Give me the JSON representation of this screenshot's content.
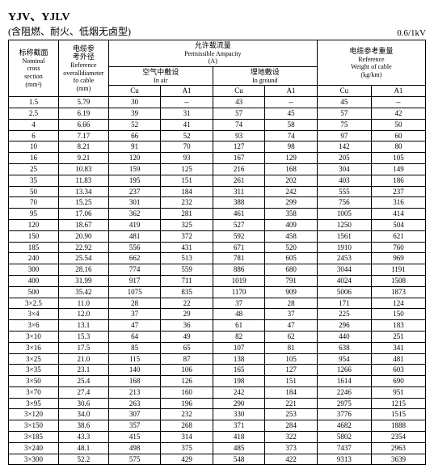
{
  "title_main": "YJV、YJLV",
  "title_sub": "(含阻燃、耐火、低烟无卤型)",
  "voltage": "0.6/1kV",
  "headers": {
    "nominal_ch": "标称截面",
    "nominal_en1": "Nominal",
    "nominal_en2": "cross",
    "nominal_en3": "section",
    "nominal_unit": "(mm²)",
    "diameter_ch": "电缆参\n考外径",
    "diameter_en1": "Reference",
    "diameter_en2": "overalldiameter",
    "diameter_en3": "fo cable",
    "diameter_unit": "(mm)",
    "ampacity_ch": "允许载流量",
    "ampacity_en": "Permissible Ampacity",
    "ampacity_unit": "(A)",
    "air_ch": "空气中敷设",
    "air_en": "In air",
    "ground_ch": "埋地敷设",
    "ground_en": "In ground",
    "weight_ch": "电缆参考重量",
    "weight_en1": "Reference",
    "weight_en2": "Weight of cable",
    "weight_unit": "(kg/km)",
    "cu": "Cu",
    "al": "A1"
  },
  "rows": [
    [
      "1.5",
      "5.79",
      "30",
      "--",
      "43",
      "--",
      "45",
      "--"
    ],
    [
      "2.5",
      "6.19",
      "39",
      "31",
      "57",
      "45",
      "57",
      "42"
    ],
    [
      "4",
      "6.66",
      "52",
      "41",
      "74",
      "58",
      "75",
      "50"
    ],
    [
      "6",
      "7.17",
      "66",
      "52",
      "93",
      "74",
      "97",
      "60"
    ],
    [
      "10",
      "8.21",
      "91",
      "70",
      "127",
      "98",
      "142",
      "80"
    ],
    [
      "16",
      "9.21",
      "120",
      "93",
      "167",
      "129",
      "205",
      "105"
    ],
    [
      "25",
      "10.83",
      "159",
      "125",
      "216",
      "168",
      "304",
      "149"
    ],
    [
      "35",
      "11.83",
      "195",
      "151",
      "261",
      "202",
      "403",
      "186"
    ],
    [
      "50",
      "13.34",
      "237",
      "184",
      "311",
      "242",
      "555",
      "237"
    ],
    [
      "70",
      "15.25",
      "301",
      "232",
      "388",
      "299",
      "756",
      "316"
    ],
    [
      "95",
      "17.06",
      "362",
      "281",
      "461",
      "358",
      "1005",
      "414"
    ],
    [
      "120",
      "18.67",
      "419",
      "325",
      "527",
      "409",
      "1250",
      "504"
    ],
    [
      "150",
      "20.90",
      "481",
      "372",
      "592",
      "458",
      "1561",
      "621"
    ],
    [
      "185",
      "22.92",
      "556",
      "431",
      "671",
      "520",
      "1910",
      "760"
    ],
    [
      "240",
      "25.54",
      "662",
      "513",
      "781",
      "605",
      "2453",
      "969"
    ],
    [
      "300",
      "28.16",
      "774",
      "559",
      "886",
      "680",
      "3044",
      "1191"
    ],
    [
      "400",
      "31.99",
      "917",
      "711",
      "1019",
      "791",
      "4024",
      "1508"
    ],
    [
      "500",
      "35.42",
      "1075",
      "835",
      "1170",
      "909",
      "5006",
      "1873"
    ],
    [
      "3×2.5",
      "11.0",
      "28",
      "22",
      "37",
      "28",
      "171",
      "124"
    ],
    [
      "3×4",
      "12.0",
      "37",
      "29",
      "48",
      "37",
      "225",
      "150"
    ],
    [
      "3×6",
      "13.1",
      "47",
      "36",
      "61",
      "47",
      "296",
      "183"
    ],
    [
      "3×10",
      "15.3",
      "64",
      "49",
      "82",
      "62",
      "440",
      "251"
    ],
    [
      "3×16",
      "17.5",
      "85",
      "65",
      "107",
      "81",
      "638",
      "341"
    ],
    [
      "3×25",
      "21.0",
      "115",
      "87",
      "138",
      "105",
      "954",
      "481"
    ],
    [
      "3×35",
      "23.1",
      "140",
      "106",
      "165",
      "127",
      "1266",
      "603"
    ],
    [
      "3×50",
      "25.4",
      "168",
      "126",
      "198",
      "151",
      "1614",
      "690"
    ],
    [
      "3×70",
      "27.4",
      "213",
      "160",
      "242",
      "184",
      "2246",
      "951"
    ],
    [
      "3×95",
      "30.6",
      "263",
      "196",
      "290",
      "221",
      "2975",
      "1215"
    ],
    [
      "3×120",
      "34.0",
      "307",
      "232",
      "330",
      "253",
      "3776",
      "1515"
    ],
    [
      "3×150",
      "38.6",
      "357",
      "268",
      "371",
      "284",
      "4682",
      "1888"
    ],
    [
      "3×185",
      "43.3",
      "415",
      "314",
      "418",
      "322",
      "5802",
      "2354"
    ],
    [
      "3×240",
      "48.1",
      "498",
      "375",
      "485",
      "373",
      "7437",
      "2963"
    ],
    [
      "3×300",
      "52.2",
      "575",
      "429",
      "548",
      "422",
      "9313",
      "3639"
    ]
  ]
}
